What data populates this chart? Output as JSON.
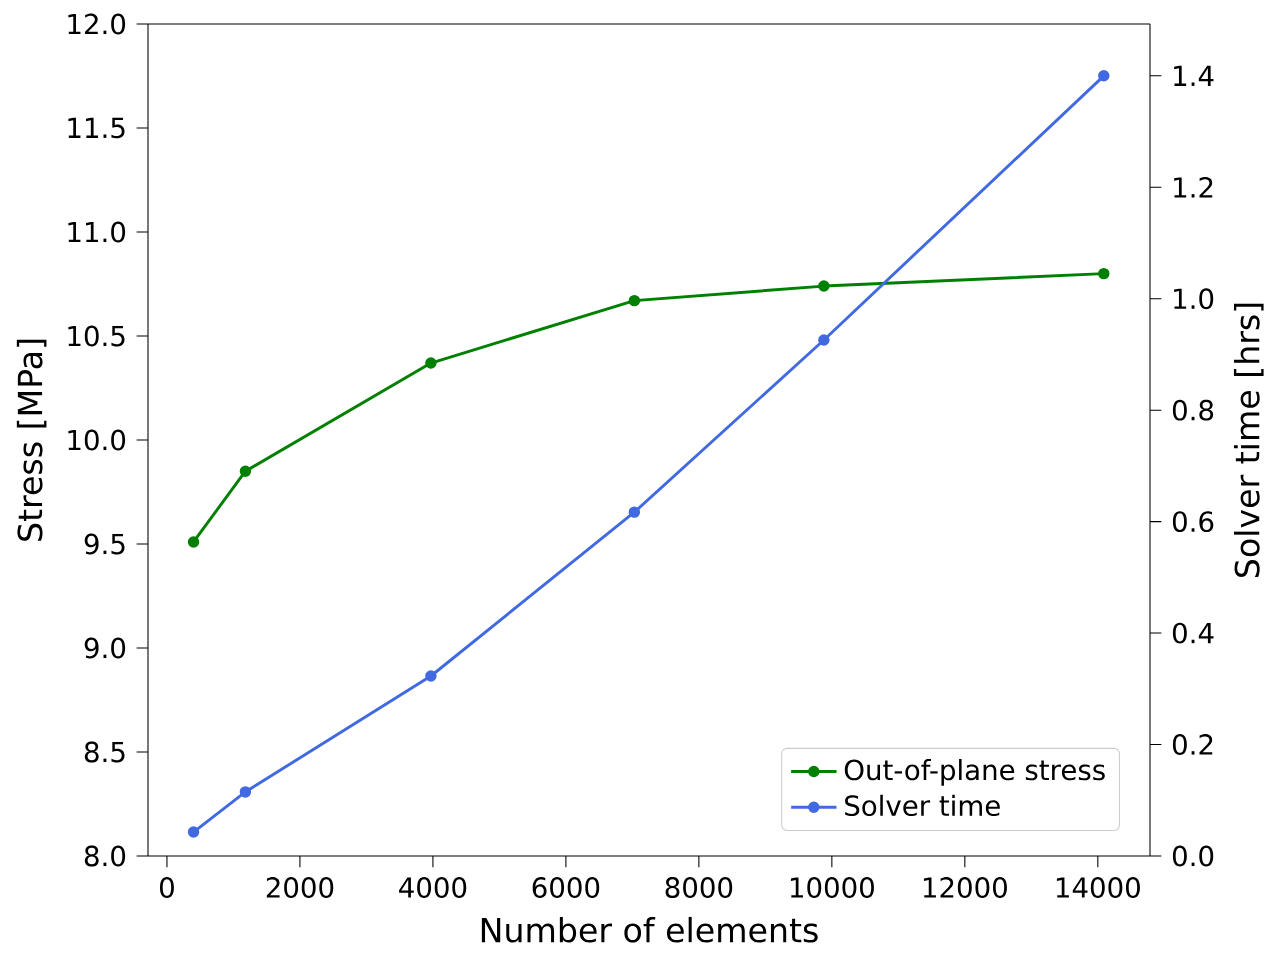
{
  "chart_data": {
    "type": "line",
    "xlabel": "Number of elements",
    "ylabel": "Stress [MPa]",
    "y2label": "Solver time [hrs]",
    "x": [
      400,
      1180,
      3970,
      7030,
      9880,
      14090
    ],
    "series": [
      {
        "name": "Out-of-plane stress",
        "color": "#008000",
        "values": [
          9.51,
          9.85,
          10.37,
          10.67,
          10.74,
          10.8
        ]
      },
      {
        "name": "Solver time",
        "color": "#4169e1",
        "axis": "y2",
        "values": [
          0.043,
          0.115,
          0.323,
          0.617,
          0.926,
          1.4
        ]
      }
    ],
    "xlim": [
      -285,
      14785
    ],
    "xticks": [
      0,
      2000,
      4000,
      6000,
      8000,
      10000,
      12000,
      14000
    ],
    "ylim": [
      8,
      12
    ],
    "yticks": [
      {
        "value": 8,
        "label": "8.0"
      },
      {
        "value": 8.5,
        "label": "8.5"
      },
      {
        "value": 9,
        "label": "9.0"
      },
      {
        "value": 9.5,
        "label": "9.5"
      },
      {
        "value": 10,
        "label": "10.0"
      },
      {
        "value": 10.5,
        "label": "10.5"
      },
      {
        "value": 11,
        "label": "11.0"
      },
      {
        "value": 11.5,
        "label": "11.5"
      },
      {
        "value": 12,
        "label": "12.0"
      }
    ],
    "y2lim": [
      0,
      1.493
    ],
    "y2ticks": [
      {
        "value": 0,
        "label": "0.0"
      },
      {
        "value": 0.2,
        "label": "0.2"
      },
      {
        "value": 0.4,
        "label": "0.4"
      },
      {
        "value": 0.6,
        "label": "0.6"
      },
      {
        "value": 0.8,
        "label": "0.8"
      },
      {
        "value": 1.0,
        "label": "1.0"
      },
      {
        "value": 1.2,
        "label": "1.2"
      },
      {
        "value": 1.4,
        "label": "1.4"
      }
    ],
    "legend": "bottom right",
    "marker": "circle",
    "line_style": "solid",
    "grid": false
  }
}
